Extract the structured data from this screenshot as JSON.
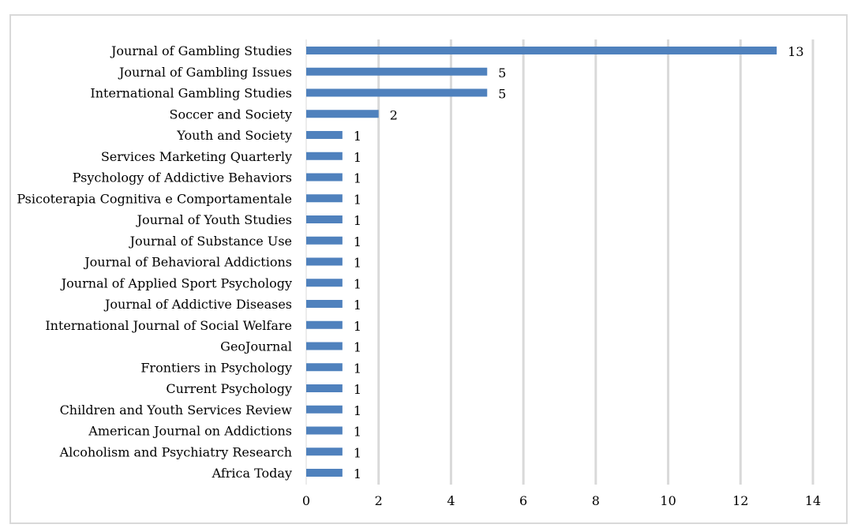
{
  "chart_data": {
    "type": "bar",
    "orientation": "horizontal",
    "categories": [
      "Journal of Gambling Studies",
      "Journal of Gambling Issues",
      "International Gambling Studies",
      "Soccer and Society",
      "Youth and Society",
      "Services Marketing Quarterly",
      "Psychology of Addictive Behaviors",
      "Psicoterapia Cognitiva e Comportamentale",
      "Journal of Youth Studies",
      "Journal of Substance Use",
      "Journal of Behavioral Addictions",
      "Journal of Applied Sport Psychology",
      "Journal of Addictive Diseases",
      "International Journal of Social Welfare",
      "GeoJournal",
      "Frontiers in Psychology",
      "Current Psychology",
      "Children and Youth Services Review",
      "American Journal on Addictions",
      "Alcoholism and Psychiatry Research",
      "Africa Today"
    ],
    "values": [
      13,
      5,
      5,
      2,
      1,
      1,
      1,
      1,
      1,
      1,
      1,
      1,
      1,
      1,
      1,
      1,
      1,
      1,
      1,
      1,
      1
    ],
    "data_labels": [
      "13",
      "5",
      "5",
      "2",
      "1",
      "1",
      "1",
      "1",
      "1",
      "1",
      "1",
      "1",
      "1",
      "1",
      "1",
      "1",
      "1",
      "1",
      "1",
      "1",
      "1"
    ],
    "xlim": [
      0,
      14
    ],
    "x_ticks": [
      "0",
      "2",
      "4",
      "6",
      "8",
      "10",
      "12",
      "14"
    ],
    "grid": true,
    "bar_color": "#4f81bd",
    "grid_color": "#d9d9d9",
    "title": "",
    "xlabel": "",
    "ylabel": ""
  }
}
